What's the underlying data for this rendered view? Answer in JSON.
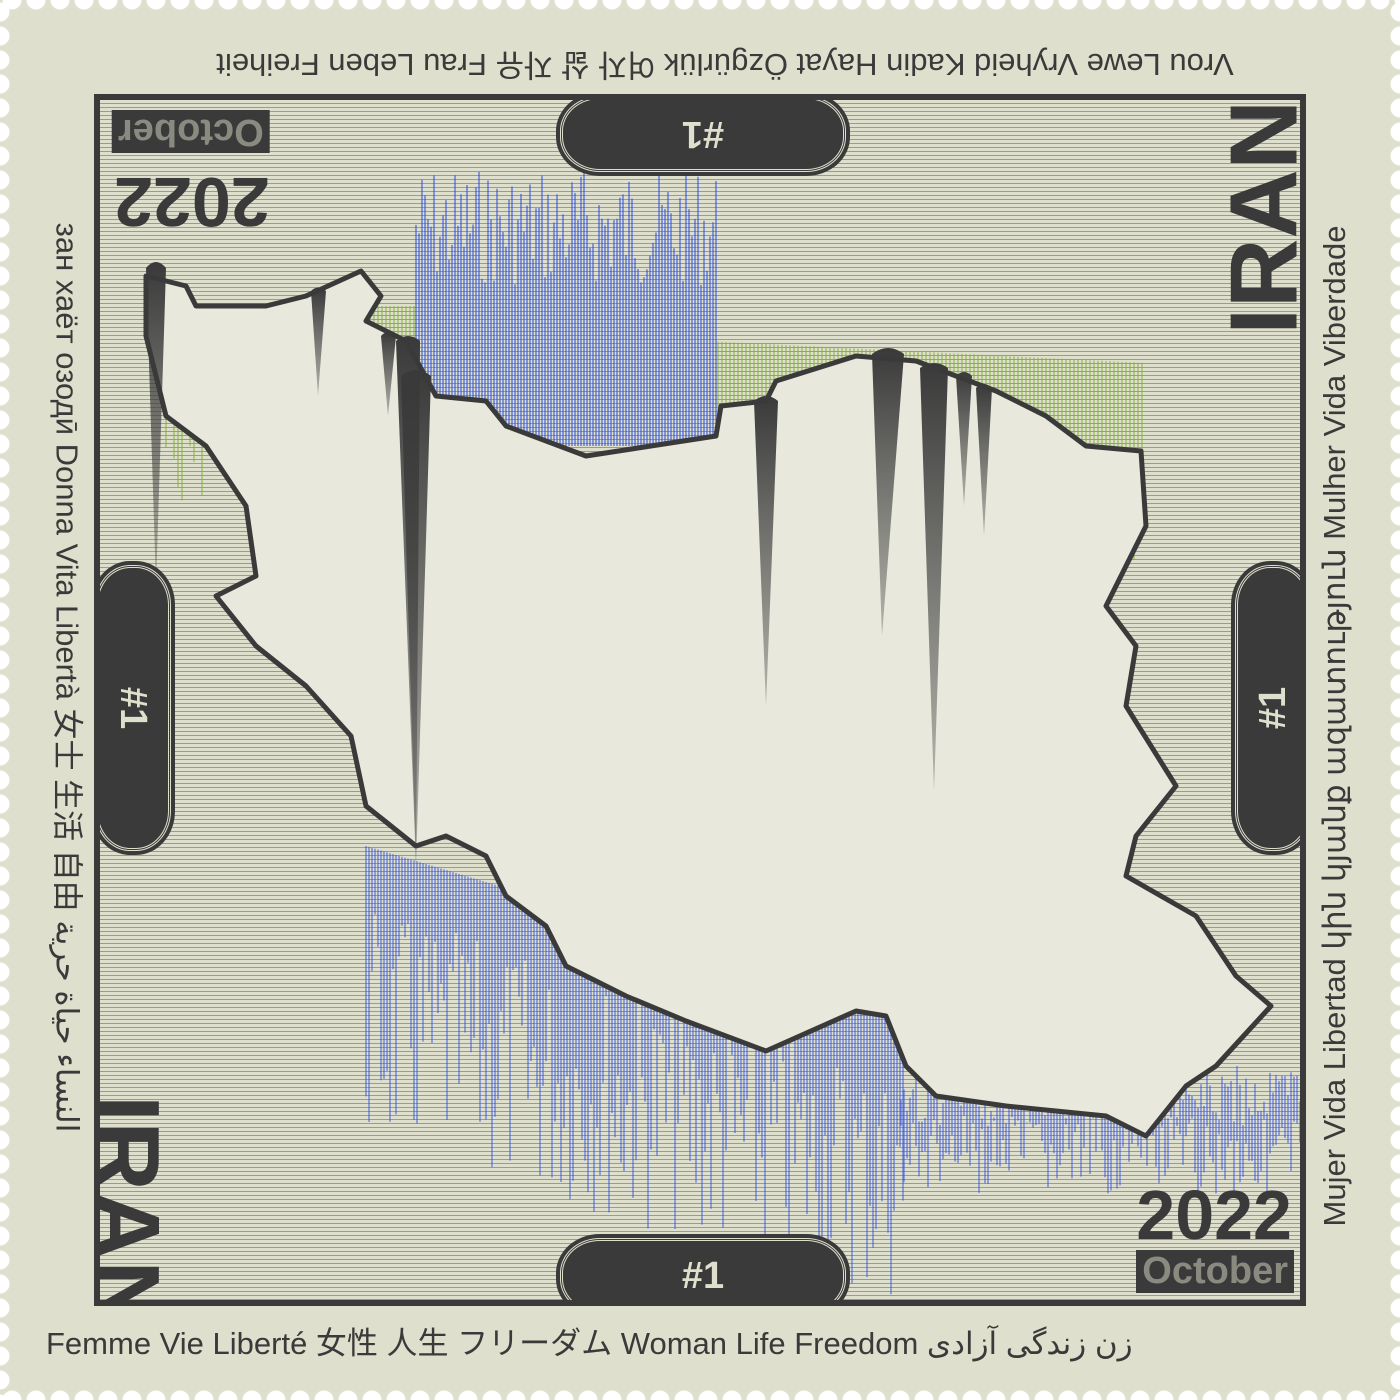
{
  "border_text": {
    "bottom": "Femme  Vie  Liberté 女性  人生  フリーダム Woman Life Freedom زن  زندگی  آزادی",
    "top": "Vrou Lewe Vryheid  Kadin Hayat Özgürlük  여자  삶  자유   Frau  Leben  Freiheit",
    "left": "зан  хаёт  озодӣ  Donna  Vita  Libertà  女士  生活  自由  النساء حياة حرية",
    "right": "Mujer Vida Libertad  կին  կյանք  ազատություն  Mulher  Vida  Viberdade"
  },
  "country": "IRAN",
  "year": "2022",
  "month": "October",
  "number": "#1",
  "colors": {
    "paper": "#dedfcc",
    "ink": "#3a3a3a",
    "north_drips": "#7fb030",
    "south_drips": "#e05050",
    "rain": "#3050e0"
  }
}
